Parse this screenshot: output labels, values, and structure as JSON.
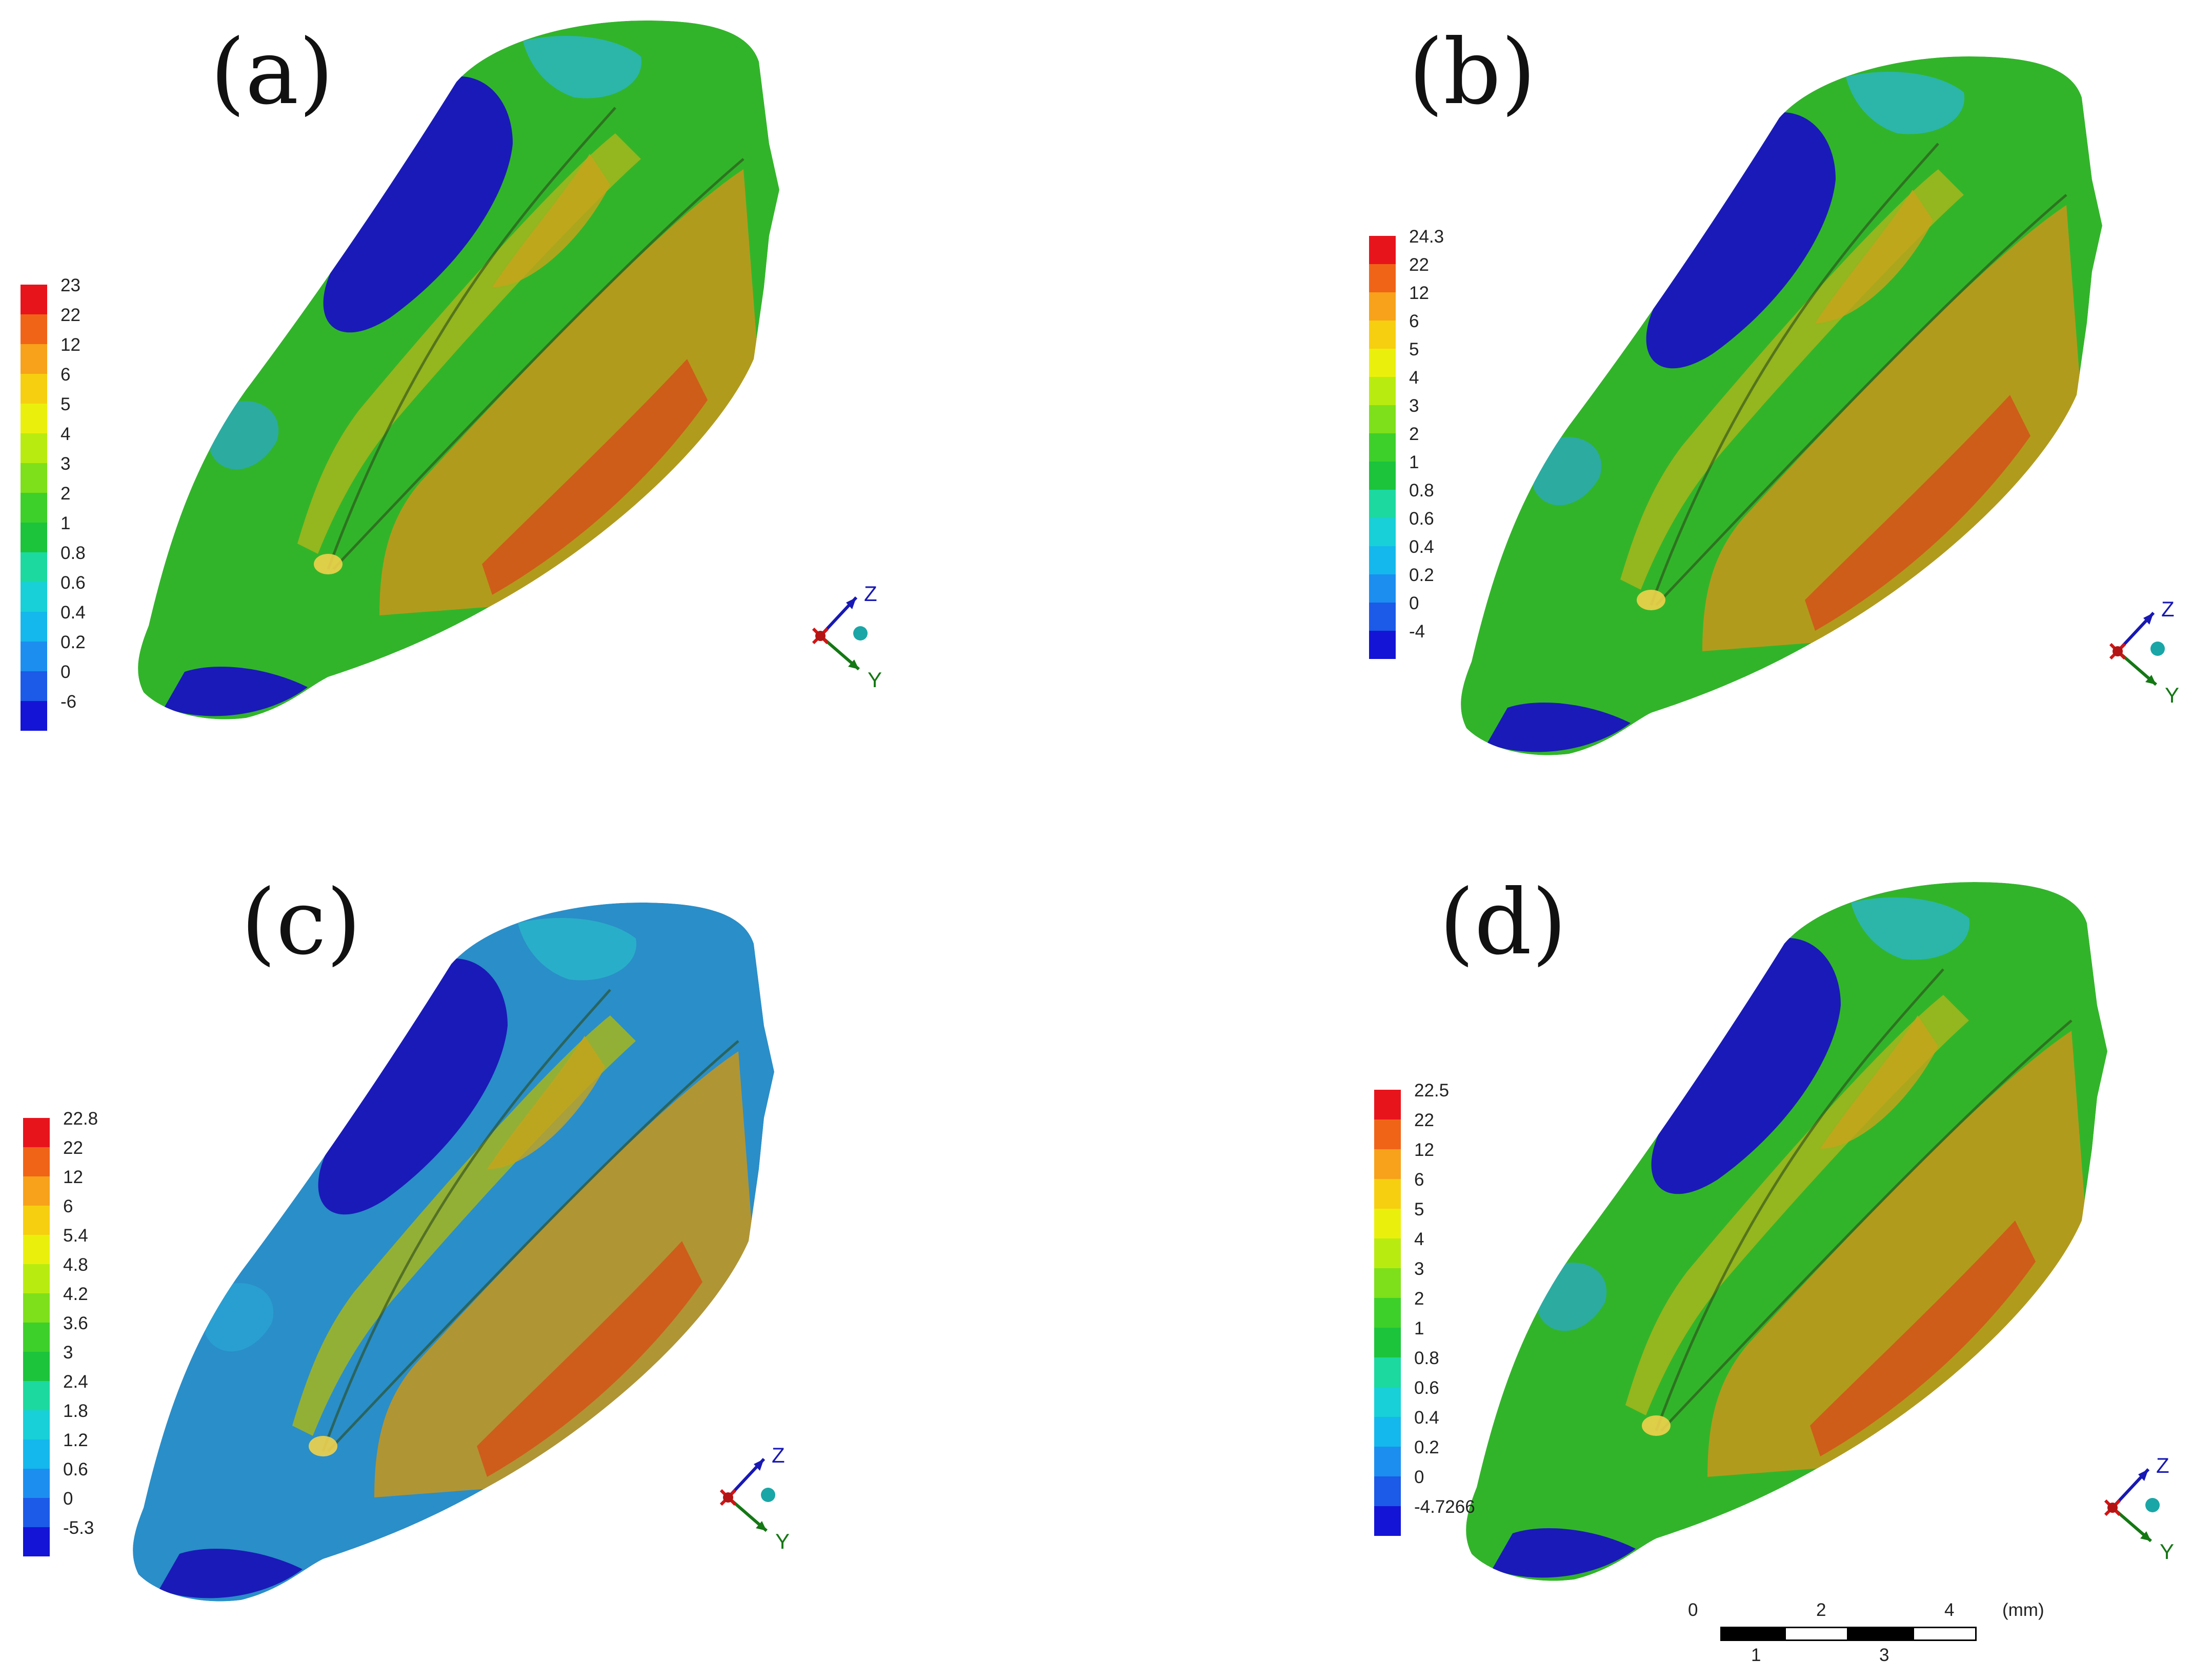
{
  "panels": [
    {
      "id": "a",
      "label": "(a)",
      "legend": [
        "23",
        "22",
        "12",
        "6",
        "5",
        "4",
        "3",
        "2",
        "1",
        "0.8",
        "0.6",
        "0.4",
        "0.2",
        "0",
        "-6"
      ]
    },
    {
      "id": "b",
      "label": "(b)",
      "legend": [
        "24.3",
        "22",
        "12",
        "6",
        "5",
        "4",
        "3",
        "2",
        "1",
        "0.8",
        "0.6",
        "0.4",
        "0.2",
        "0",
        "-4"
      ]
    },
    {
      "id": "c",
      "label": "(c)",
      "legend": [
        "22.8",
        "22",
        "12",
        "6",
        "5.4",
        "4.8",
        "4.2",
        "3.6",
        "3",
        "2.4",
        "1.8",
        "1.2",
        "0.6",
        "0",
        "-5.3"
      ]
    },
    {
      "id": "d",
      "label": "(d)",
      "legend": [
        "22.5",
        "22",
        "12",
        "6",
        "5",
        "4",
        "3",
        "2",
        "1",
        "0.8",
        "0.6",
        "0.4",
        "0.2",
        "0",
        "-4.7266"
      ]
    }
  ],
  "legend_colors": [
    "#e8141c",
    "#f06418",
    "#f7a21a",
    "#f6cf10",
    "#eaf00c",
    "#b8ec10",
    "#7ee01a",
    "#3ed02a",
    "#1cc43c",
    "#1cd9a0",
    "#18d0d8",
    "#14b8ec",
    "#1c8ef0",
    "#1c5ae8",
    "#1414d6"
  ],
  "triad": {
    "z_label": "Z",
    "y_label": "Y"
  },
  "scale_bar": {
    "top_ticks": [
      "0",
      "2",
      "4"
    ],
    "bottom_ticks": [
      "1",
      "3"
    ],
    "unit": "(mm)"
  }
}
